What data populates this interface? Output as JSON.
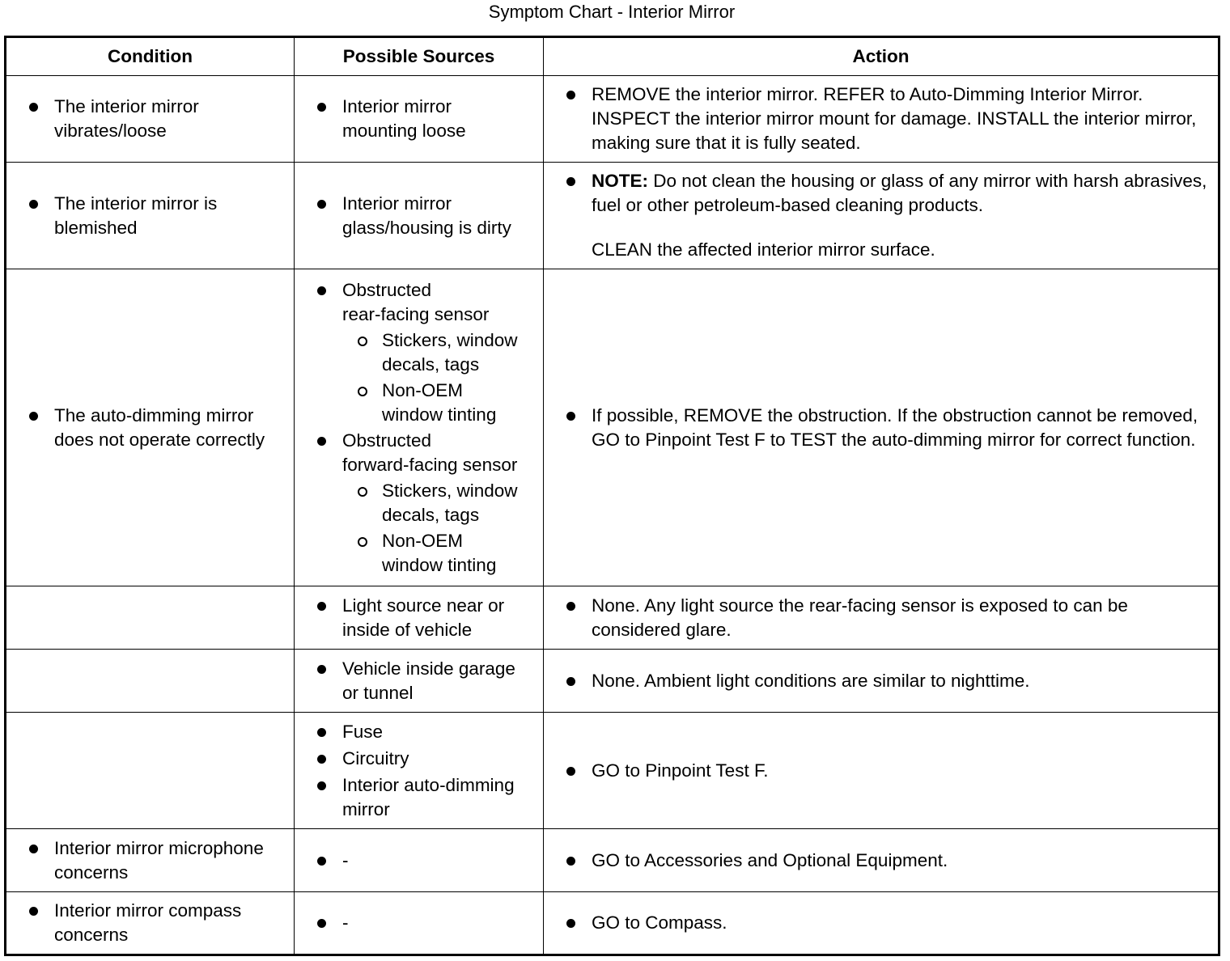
{
  "title": "Symptom Chart - Interior Mirror",
  "headers": {
    "condition": "Condition",
    "sources": "Possible Sources",
    "action": "Action"
  },
  "rows": [
    {
      "condition": [
        "The interior mirror",
        "vibrates/loose"
      ],
      "sources": [
        [
          "Interior mirror",
          "mounting loose"
        ]
      ],
      "action": "REMOVE the interior mirror. REFER to Auto-Dimming Interior Mirror. INSPECT the interior mirror mount for damage. INSTALL the interior mirror, making sure that it is fully seated."
    },
    {
      "condition": [
        "The interior mirror is",
        "blemished"
      ],
      "sources": [
        [
          "Interior mirror",
          "glass/housing is dirty"
        ]
      ],
      "note_label": "NOTE:",
      "note": " Do not clean the housing or glass of any mirror with harsh abrasives, fuel or other petroleum-based cleaning products.",
      "action": "CLEAN the affected interior mirror surface."
    },
    {
      "condition": [
        "The auto-dimming mirror",
        "does not operate correctly"
      ],
      "sources": [
        {
          "label": [
            "Obstructed",
            "rear-facing sensor"
          ],
          "subs": [
            [
              "Stickers, window",
              "decals, tags"
            ],
            [
              "Non-OEM",
              "window tinting"
            ]
          ]
        },
        {
          "label": [
            "Obstructed",
            "forward-facing sensor"
          ],
          "subs": [
            [
              "Stickers, window",
              "decals, tags"
            ],
            [
              "Non-OEM",
              "window tinting"
            ]
          ]
        }
      ],
      "action": "If possible, REMOVE the obstruction. If the obstruction cannot be removed, GO to Pinpoint Test F to TEST the auto-dimming mirror for correct function."
    },
    {
      "sources": [
        [
          "Light source near or",
          "inside of vehicle"
        ]
      ],
      "action": "None. Any light source the rear-facing sensor is exposed to can be considered glare."
    },
    {
      "sources": [
        [
          "Vehicle inside garage",
          "or tunnel"
        ]
      ],
      "action": "None. Ambient light conditions are similar to nighttime."
    },
    {
      "sources": [
        "Fuse",
        "Circuitry",
        [
          "Interior auto-dimming",
          "mirror"
        ]
      ],
      "action": "GO to Pinpoint Test F."
    },
    {
      "condition": [
        "Interior mirror microphone",
        "concerns"
      ],
      "sources": [
        "-"
      ],
      "action": "GO to Accessories and Optional Equipment."
    },
    {
      "condition": [
        "Interior mirror compass",
        "concerns"
      ],
      "sources": [
        "-"
      ],
      "action": "GO to Compass."
    }
  ]
}
